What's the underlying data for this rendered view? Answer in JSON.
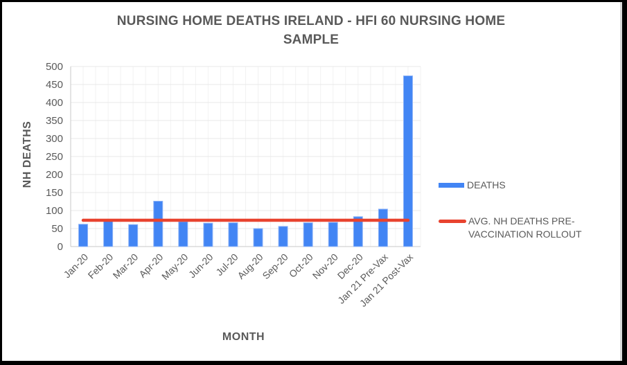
{
  "chart_data": {
    "type": "bar",
    "title": "NURSING HOME DEATHS IRELAND - HFI 60 NURSING HOME SAMPLE",
    "title_lines": [
      "NURSING HOME DEATHS IRELAND - HFI 60 NURSING HOME",
      "SAMPLE"
    ],
    "xlabel": "MONTH",
    "ylabel": "NH DEATHS",
    "categories": [
      "Jan-20",
      "Feb-20",
      "Mar-20",
      "Apr-20",
      "May-20",
      "Jun-20",
      "Jul-20",
      "Aug-20",
      "Sep-20",
      "Oct-20",
      "Nov-20",
      "Dec-20",
      "Jan 21 Pre-Vax",
      "Jan 21 Post-Vax"
    ],
    "series": [
      {
        "name": "DEATHS",
        "type": "bar",
        "color": "#4285f4",
        "values": [
          62,
          71,
          61,
          126,
          69,
          65,
          66,
          50,
          56,
          66,
          67,
          83,
          104,
          474
        ]
      },
      {
        "name": "AVG. NH DEATHS PRE-VACCINATION ROLLOUT",
        "type": "line",
        "color": "#e8432f",
        "values": [
          73,
          73,
          73,
          73,
          73,
          73,
          73,
          73,
          73,
          73,
          73,
          73,
          73,
          73
        ]
      }
    ],
    "ylim": [
      0,
      500
    ],
    "yticks": [
      0,
      50,
      100,
      150,
      200,
      250,
      300,
      350,
      400,
      450,
      500
    ],
    "grid": "horizontal and vertical light gray gridlines",
    "legend_position": "right",
    "x_label_rotation_deg": 45
  },
  "colors": {
    "bar_fill": "#4285f4",
    "bar_edge": "#8fb4f7",
    "avg_line": "#e8432f",
    "text_gray": "#595959",
    "gridline_h": "#e8e8e8",
    "gridline_v": "#f2f2f2",
    "axis_line": "#c9c9c9",
    "frame_border": "#000000"
  }
}
